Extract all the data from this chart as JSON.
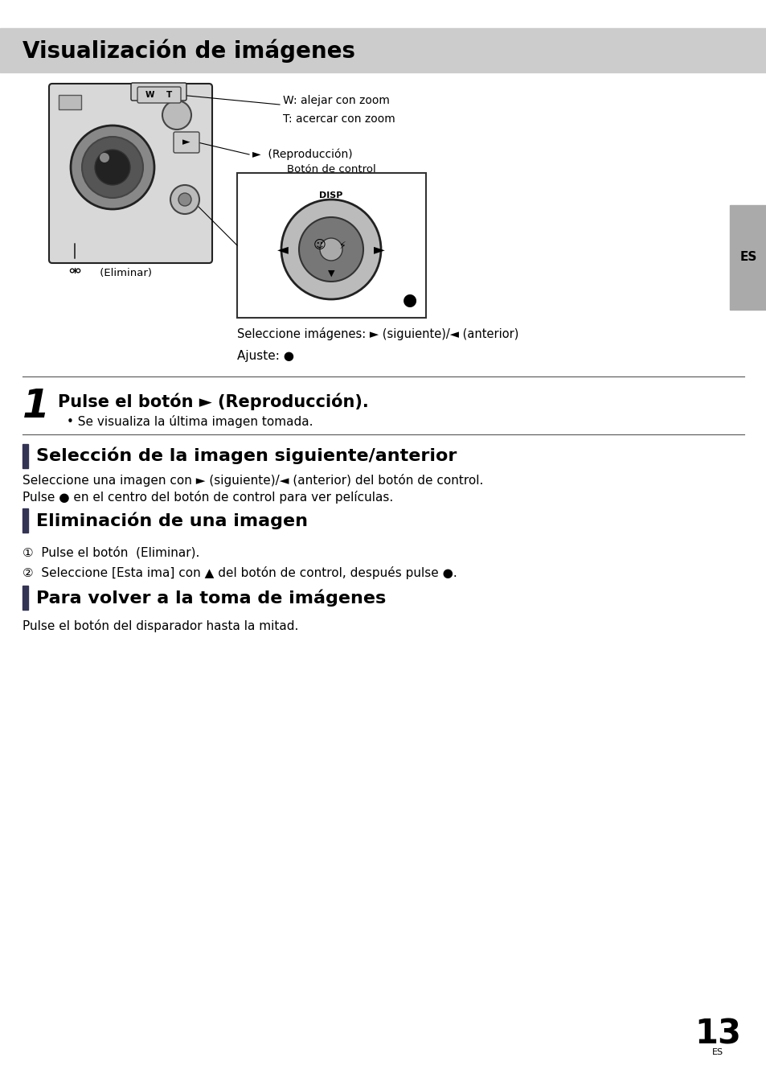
{
  "page_bg": "#ffffff",
  "header_bg": "#cccccc",
  "header_text": "Visualización de imágenes",
  "header_text_color": "#000000",
  "header_font_size": 20,
  "page_number_label": "ES",
  "page_number": "13",
  "step1_text": "Pulse el botón ► (Reproducción).",
  "step1_sub": "• Se visualiza la última imagen tomada.",
  "section1_body1": "Seleccione una imagen con ► (siguiente)/◄ (anterior) del botón de control.",
  "section1_body2": "Pulse ● en el centro del botón de control para ver películas.",
  "section2_item1": "①  Pulse el botón  (Eliminar).",
  "section2_item2": "②  Seleccione [Esta ima] con ▲ del botón de control, después pulse ●.",
  "section3_body": "Pulse el botón del disparador hasta la mitad.",
  "diagram_notes_line1": "Seleccione imágenes: ► (siguiente)/◄ (anterior)",
  "diagram_notes_line2": "Ajuste: ●",
  "wt_label": "W    T",
  "w_note": "W: alejar con zoom",
  "t_note": "T: acercar con zoom",
  "repro_note": "►  (Reproducción)",
  "control_label": "Botón de control",
  "disp_label": "DISP",
  "eliminar_label": " (Eliminar)",
  "section1_title": "Selección de la imagen siguiente/anterior",
  "section2_title": "Eliminación de una imagen",
  "section3_title": "Para volver a la toma de imágenes"
}
